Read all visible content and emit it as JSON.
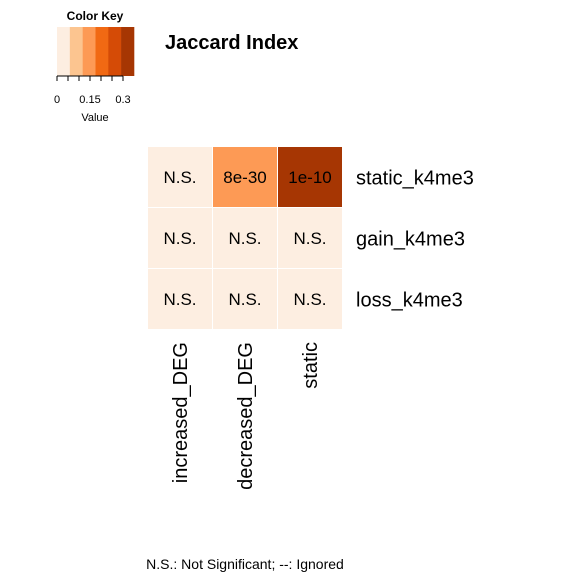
{
  "chart_data": {
    "type": "heatmap",
    "title": "Jaccard Index",
    "rows": [
      "static_k4me3",
      "gain_k4me3",
      "loss_k4me3"
    ],
    "columns": [
      "increased_DEG",
      "decreased_DEG",
      "static"
    ],
    "values": [
      [
        0.0,
        0.13,
        0.33
      ],
      [
        0.0,
        0.0,
        0.0
      ],
      [
        0.0,
        0.0,
        0.0
      ]
    ],
    "cell_labels": [
      [
        "N.S.",
        "8e-30",
        "1e-10"
      ],
      [
        "N.S.",
        "N.S.",
        "N.S."
      ],
      [
        "N.S.",
        "N.S.",
        "N.S."
      ]
    ],
    "color_key": {
      "title": "Color Key",
      "xlabel": "Value",
      "ticks": [
        "0",
        "0.15",
        "0.3"
      ],
      "tick_values": [
        0,
        0.15,
        0.3
      ],
      "range": [
        0,
        0.35
      ],
      "colors": [
        "#fdeee1",
        "#fcc590",
        "#fd9a55",
        "#f16913",
        "#d54b06",
        "#a63603"
      ]
    },
    "footnote": "N.S.: Not Significant; --: Ignored"
  }
}
